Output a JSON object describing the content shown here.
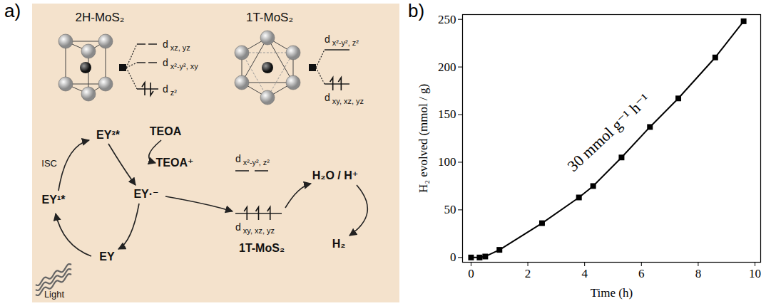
{
  "panel_labels": [
    "a)",
    "b)"
  ],
  "diagram": {
    "structures": [
      {
        "name": "2H-MoS₂",
        "levels": [
          {
            "label": "d xz, yz",
            "electrons": 0
          },
          {
            "label": "d x²-y², xy",
            "electrons": 0
          },
          {
            "label": "d z²",
            "electrons": 2
          }
        ]
      },
      {
        "name": "1T-MoS₂",
        "levels": [
          {
            "label": "d x²-y², z²",
            "electrons": 0
          },
          {
            "label": "d xy, xz, yz",
            "electrons": 2
          }
        ]
      }
    ],
    "photocycle": {
      "ground": "EY",
      "singlet": "EY¹*",
      "triplet": "EY³*",
      "reduced": "EY·⁻",
      "intersystem_crossing": "ISC",
      "donor": "TEOA",
      "donor_oxidized": "TEOA⁺",
      "light": "Light"
    },
    "catalyst": {
      "name": "1T-MoS₂",
      "levels": [
        {
          "label": "d x²-y², z²",
          "electrons": 0
        },
        {
          "label": "d xy, xz, yz",
          "electrons": 3
        }
      ]
    },
    "reaction": {
      "reactant": "H₂O / H⁺",
      "product": "H₂"
    }
  },
  "chart_data": {
    "type": "line",
    "x": [
      0,
      0.3,
      0.5,
      1,
      2.5,
      3.8,
      4.3,
      5.3,
      6.3,
      7.3,
      8.6,
      9.6
    ],
    "values": [
      0,
      0,
      1,
      8,
      36,
      63,
      75,
      105,
      137,
      167,
      210,
      248
    ],
    "color": "#000000",
    "marker": "square",
    "xlabel": "Time (h)",
    "ylabel": "H₂ evolved (mmol / g)",
    "xlim": [
      -0.3,
      10.2
    ],
    "ylim": [
      -5,
      255
    ],
    "xticks": [
      0,
      2,
      4,
      6,
      8,
      10
    ],
    "yticks": [
      0,
      50,
      100,
      150,
      200,
      250
    ],
    "annotations": [
      "30 mmol g⁻¹ h⁻¹"
    ]
  }
}
